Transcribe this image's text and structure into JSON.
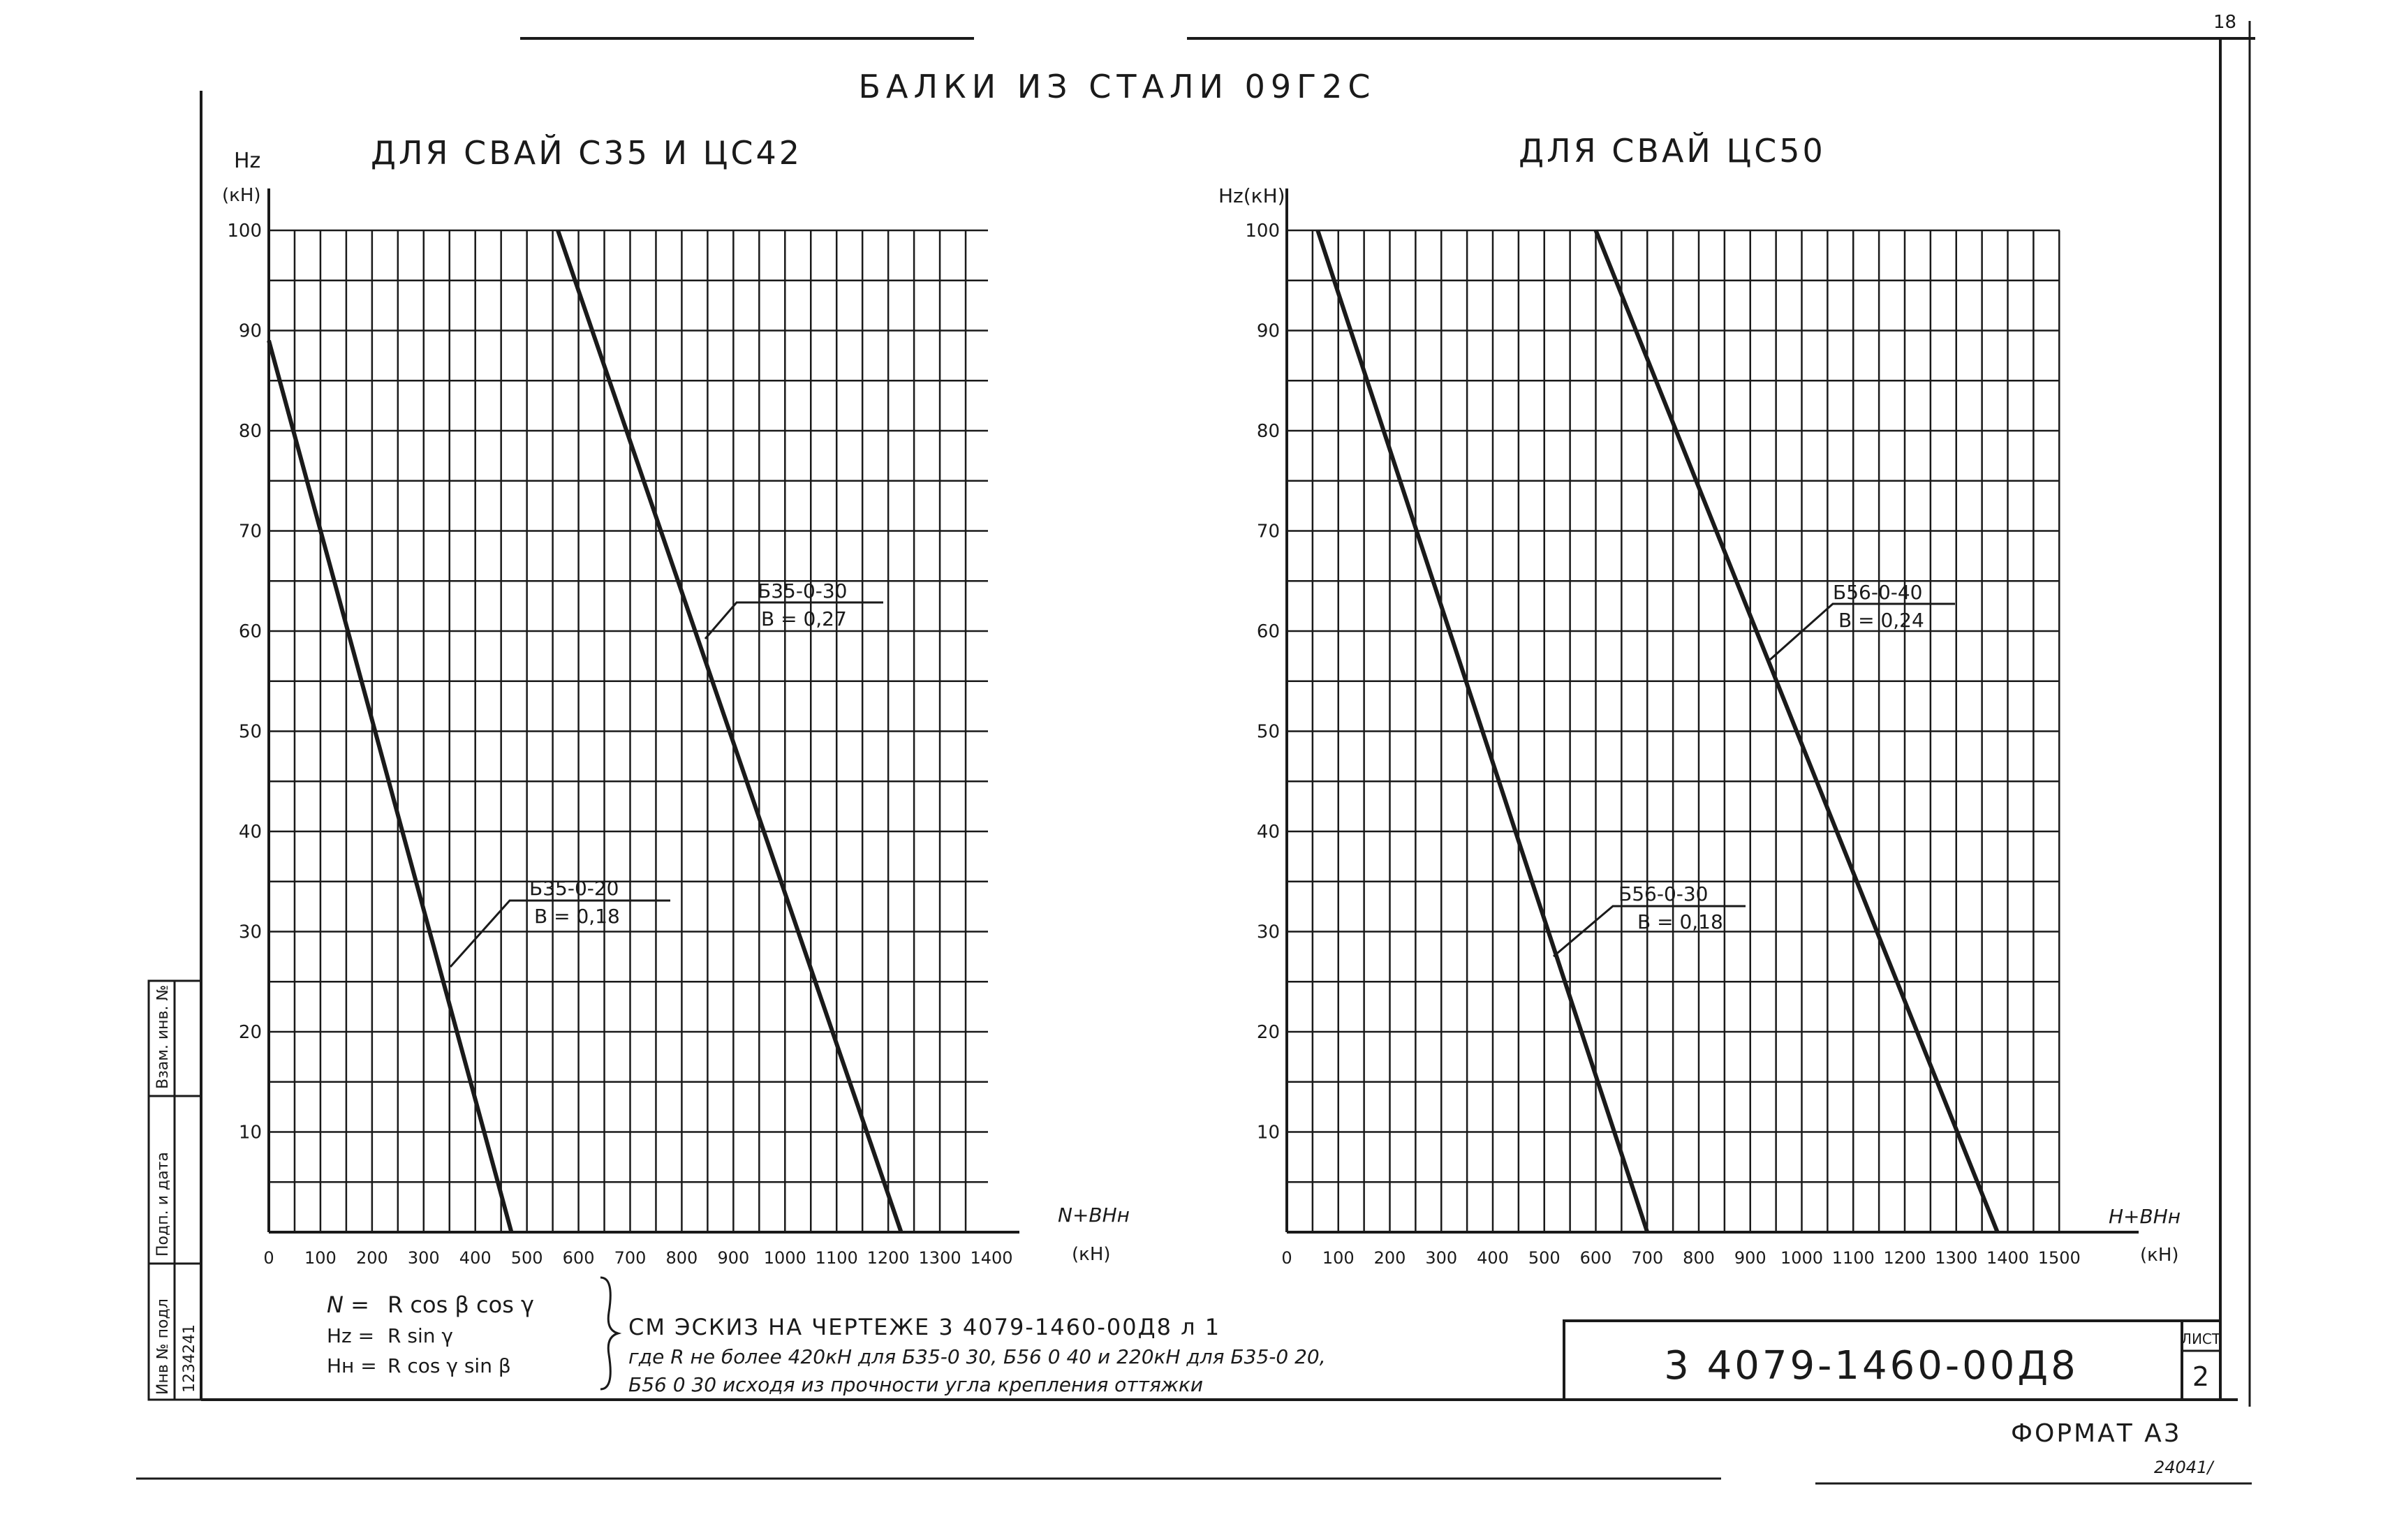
{
  "main_title": "БАЛКИ ИЗ СТАЛИ 09Г2С",
  "chart_data": [
    {
      "type": "line",
      "title": "ДЛЯ СВАЙ С35 И ЦС42",
      "ylabel_top": "Hz",
      "ylabel_bottom": "(кН)",
      "xlabel": "N+BHн",
      "xunit": "(кН)",
      "xlim": [
        0,
        1400
      ],
      "ylim": [
        0,
        100
      ],
      "x_ticks": [
        "0",
        "100",
        "200",
        "300",
        "400",
        "500",
        "600",
        "700",
        "800",
        "900",
        "1000",
        "1100",
        "1200",
        "1300",
        "1400"
      ],
      "y_ticks": [
        "10",
        "20",
        "30",
        "40",
        "50",
        "60",
        "70",
        "80",
        "90",
        "100"
      ],
      "grid": true,
      "series": [
        {
          "name": "Б35-0-20",
          "coef": "B = 0,18",
          "points": [
            [
              0,
              89
            ],
            [
              470,
              0
            ]
          ]
        },
        {
          "name": "Б35-0-30",
          "coef": "B = 0,27",
          "points": [
            [
              560,
              100
            ],
            [
              1225,
              0
            ]
          ]
        }
      ]
    },
    {
      "type": "line",
      "title": "ДЛЯ СВАЙ ЦС50",
      "ylabel_top": "Hz(кН)",
      "ylabel_bottom": "",
      "xlabel": "H+BHн",
      "xunit": "(кН)",
      "xlim": [
        0,
        1600
      ],
      "ylim": [
        0,
        100
      ],
      "x_ticks": [
        "0",
        "100",
        "200",
        "300",
        "400",
        "500",
        "600",
        "700",
        "800",
        "900",
        "1000",
        "1100",
        "1200",
        "1300",
        "1400",
        "1500"
      ],
      "y_ticks": [
        "10",
        "20",
        "30",
        "40",
        "50",
        "60",
        "70",
        "80",
        "90",
        "100"
      ],
      "grid": true,
      "series": [
        {
          "name": "Б56-0-30",
          "coef": "B = 0,18",
          "points": [
            [
              60,
              100
            ],
            [
              700,
              0
            ]
          ]
        },
        {
          "name": "Б56-0-40",
          "coef": "B = 0,24",
          "points": [
            [
              600,
              100
            ],
            [
              1380,
              0
            ]
          ]
        }
      ]
    }
  ],
  "formulas": [
    {
      "lhs": "N =",
      "rhs": "R  cos β  cos γ"
    },
    {
      "lhs": "Hz =",
      "rhs": "R  sin γ"
    },
    {
      "lhs": "Hн =",
      "rhs": "R  cos γ  sin β"
    }
  ],
  "note_line1": "СМ ЭСКИЗ НА ЧЕРТЕЖЕ  3 4079-1460-00Д8 л 1",
  "note_line2": "где R не более 420кН для Б35-0 30, Б56 0 40 и 220кН для Б35-0 20,",
  "note_line3": "Б56 0 30 исходя из прочности угла крепления оттяжки",
  "doc_number": "3 4079-1460-00Д8",
  "sheet_label": "ЛИСТ",
  "sheet_number": "2",
  "format_label": "ФОРМАТ  А3",
  "bottom_mark": "24041/",
  "corner_mark": "18",
  "side_stamp": [
    "Инв № подл",
    "Подп. и дата",
    "Взам. инв. №"
  ],
  "side_stamp_value": "1234241"
}
